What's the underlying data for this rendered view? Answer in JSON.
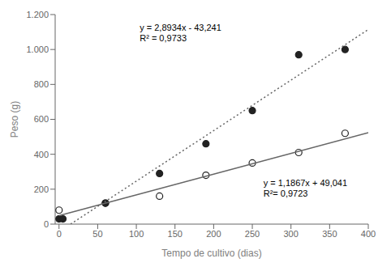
{
  "chart_data": {
    "type": "scatter",
    "xlabel": "Tempo de cultivo (dias)",
    "ylabel": "Peso (g)",
    "xlim": [
      -5,
      400
    ],
    "ylim": [
      0,
      1200
    ],
    "xticks": [
      0,
      50,
      100,
      150,
      200,
      250,
      300,
      350,
      400
    ],
    "yticks": [
      0,
      200,
      400,
      600,
      800,
      {
        "value": 1000,
        "label": "1.000"
      },
      {
        "value": 1200,
        "label": "1.200"
      }
    ],
    "grid": false,
    "series": [
      {
        "type": "scatter",
        "marker": "circle",
        "color": "#222222",
        "x": [
          0,
          5,
          60,
          130,
          190,
          250,
          310,
          370
        ],
        "values": [
          30,
          30,
          120,
          290,
          460,
          650,
          970,
          1000
        ]
      },
      {
        "type": "scatter",
        "marker": "hollow",
        "color": "#222222",
        "x": [
          0,
          60,
          130,
          190,
          250,
          310,
          370
        ],
        "values": [
          80,
          120,
          160,
          280,
          350,
          410,
          520
        ]
      },
      {
        "type": "line",
        "line_style": "dotted",
        "color": "#666666",
        "x": [
          14.9447017,
          400
        ],
        "values": [
          0,
          1114.119
        ]
      },
      {
        "type": "line",
        "line_style": "solid",
        "color": "#666666",
        "x": [
          0,
          400
        ],
        "values": [
          49.041,
          523.721
        ]
      }
    ],
    "annotations": [
      "y = 2,8934x - 43,241",
      "R² = 0,9733",
      "y = 1,1867x + 49,041",
      "R²= 0,9723"
    ]
  }
}
